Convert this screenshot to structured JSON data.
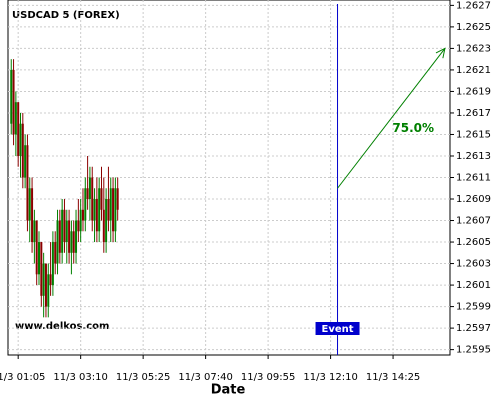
{
  "chart_data": {
    "type": "ohlc",
    "title": "USDCAD 5 (FOREX)",
    "watermark": "www.delkos.com",
    "xlabel": "Date",
    "x": [
      -15,
      -10,
      -5,
      0,
      5,
      10,
      15,
      20,
      25,
      30,
      35,
      40,
      45,
      50,
      55,
      60,
      65,
      70,
      75,
      80,
      85,
      90,
      95,
      100,
      105,
      110,
      115,
      120,
      125,
      130,
      135,
      140,
      145,
      150,
      155,
      160,
      165,
      170,
      175,
      180,
      185,
      190,
      195,
      200,
      205,
      210,
      215
    ],
    "open": [
      1.2616,
      1.2621,
      1.2615,
      1.2618,
      1.2613,
      1.2616,
      1.2611,
      1.2614,
      1.2607,
      1.261,
      1.2605,
      1.2607,
      1.2602,
      1.2605,
      1.26,
      1.2603,
      1.2599,
      1.2602,
      1.2601,
      1.2605,
      1.2603,
      1.2607,
      1.2604,
      1.2608,
      1.2605,
      1.2607,
      1.2604,
      1.2606,
      1.2604,
      1.2607,
      1.2606,
      1.2608,
      1.2607,
      1.261,
      1.2609,
      1.2611,
      1.2607,
      1.2609,
      1.2606,
      1.261,
      1.2608,
      1.2605,
      1.2609,
      1.2607,
      1.261,
      1.2606,
      1.261
    ],
    "high": [
      1.2622,
      1.2622,
      1.2619,
      1.2618,
      1.2617,
      1.2617,
      1.2615,
      1.2615,
      1.2611,
      1.2611,
      1.2608,
      1.2607,
      1.2606,
      1.2605,
      1.2604,
      1.2603,
      1.2603,
      1.2605,
      1.2606,
      1.2606,
      1.2608,
      1.2608,
      1.2609,
      1.2609,
      1.2608,
      1.2608,
      1.2607,
      1.2607,
      1.2608,
      1.2609,
      1.2609,
      1.261,
      1.2611,
      1.2613,
      1.2612,
      1.2612,
      1.261,
      1.2611,
      1.2611,
      1.2612,
      1.2611,
      1.261,
      1.2612,
      1.2611,
      1.2611,
      1.2611,
      1.2611
    ],
    "low": [
      1.2615,
      1.2614,
      1.2613,
      1.2612,
      1.2611,
      1.261,
      1.261,
      1.2606,
      1.2605,
      1.2604,
      1.2603,
      1.2601,
      1.2601,
      1.2599,
      1.2598,
      1.2598,
      1.2598,
      1.26,
      1.26,
      1.2602,
      1.2602,
      1.2603,
      1.2603,
      1.2604,
      1.2603,
      1.2603,
      1.2602,
      1.2603,
      1.2603,
      1.2605,
      1.2605,
      1.2606,
      1.2606,
      1.2608,
      1.2607,
      1.2606,
      1.2605,
      1.2605,
      1.2605,
      1.2607,
      1.2604,
      1.2604,
      1.2606,
      1.2605,
      1.2605,
      1.2605,
      1.2607
    ],
    "close": [
      1.2621,
      1.2615,
      1.2618,
      1.2613,
      1.2616,
      1.2611,
      1.2614,
      1.2607,
      1.261,
      1.2605,
      1.2607,
      1.2602,
      1.2605,
      1.26,
      1.2603,
      1.2599,
      1.2602,
      1.2601,
      1.2605,
      1.2603,
      1.2607,
      1.2604,
      1.2608,
      1.2605,
      1.2607,
      1.2604,
      1.2606,
      1.2604,
      1.2607,
      1.2606,
      1.2608,
      1.2607,
      1.261,
      1.2609,
      1.2611,
      1.2607,
      1.2609,
      1.2606,
      1.261,
      1.2608,
      1.2605,
      1.2609,
      1.2607,
      1.261,
      1.2606,
      1.261,
      1.2608
    ],
    "up_color": "#008000",
    "down_color": "#8b0000",
    "xlim": [
      -22,
      933
    ],
    "ylim": [
      1.25945,
      1.26275
    ],
    "xticks": [
      {
        "value": 0,
        "label": "11/3 01:05"
      },
      {
        "value": 135,
        "label": "11/3 03:10"
      },
      {
        "value": 270,
        "label": "11/3 05:25"
      },
      {
        "value": 405,
        "label": "11/3 07:40"
      },
      {
        "value": 540,
        "label": "11/3 09:55"
      },
      {
        "value": 675,
        "label": "11/3 12:10"
      },
      {
        "value": 810,
        "label": "11/3 14:25"
      }
    ],
    "yticks": [
      1.2595,
      1.2597,
      1.2599,
      1.2601,
      1.2603,
      1.2605,
      1.2607,
      1.2609,
      1.2611,
      1.2613,
      1.2615,
      1.2617,
      1.2619,
      1.2621,
      1.2623,
      1.2625,
      1.2627
    ],
    "grid": true,
    "event": {
      "x": 690,
      "label": "Event",
      "color": "#0000cc"
    },
    "arrow": {
      "x": [
        690,
        922
      ],
      "y": [
        1.261,
        1.2623
      ],
      "label": "75.0%",
      "color": "#008000"
    }
  }
}
